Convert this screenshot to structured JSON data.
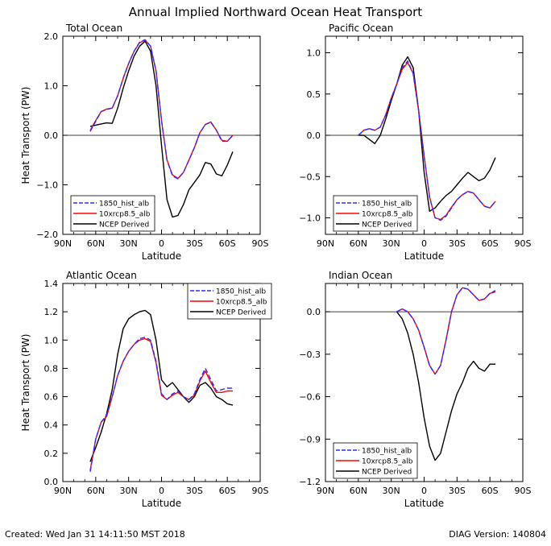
{
  "title": "Annual Implied Northward Ocean Heat Transport",
  "footer": {
    "created": "Created: Wed Jan 31 14:11:50 MST 2018",
    "version": "DIAG Version: 140804"
  },
  "colors": {
    "s1850": "#2b2bff",
    "s10x": "#ff0000",
    "ncep": "#000000",
    "zero": "#000000"
  },
  "chart_data": [
    {
      "type": "line",
      "title": "Total Ocean",
      "xlabel": "Latitude",
      "ylabel": "Heat Transport (PW)",
      "xticks": [
        "90N",
        "60N",
        "30N",
        "0",
        "30S",
        "60S",
        "90S"
      ],
      "xlim": [
        90,
        -90
      ],
      "ylim": [
        -2.0,
        2.0
      ],
      "yticks": [
        -2.0,
        -1.0,
        0.0,
        1.0,
        2.0
      ],
      "ytick_labels": [
        "−2.0",
        "−1.0",
        "0.0",
        "1.0",
        "2.0"
      ],
      "legend_position": "bottom-left",
      "series": [
        {
          "name": "1850_hist_alb",
          "style": "dashed",
          "color": "#2b2bff",
          "x": [
            65,
            60,
            55,
            50,
            45,
            40,
            35,
            30,
            25,
            20,
            15,
            10,
            5,
            0,
            -5,
            -10,
            -15,
            -20,
            -25,
            -30,
            -35,
            -40,
            -45,
            -50,
            -55,
            -60,
            -65
          ],
          "y": [
            0.08,
            0.28,
            0.48,
            0.52,
            0.55,
            0.8,
            1.15,
            1.45,
            1.7,
            1.88,
            1.93,
            1.8,
            1.3,
            0.3,
            -0.5,
            -0.82,
            -0.88,
            -0.75,
            -0.5,
            -0.25,
            0.05,
            0.22,
            0.26,
            0.1,
            -0.12,
            -0.12,
            0.0
          ]
        },
        {
          "name": "10xrcp8.5_alb",
          "style": "solid",
          "color": "#ff0000",
          "x": [
            65,
            60,
            55,
            50,
            45,
            40,
            35,
            30,
            25,
            20,
            15,
            10,
            5,
            0,
            -5,
            -10,
            -15,
            -20,
            -25,
            -30,
            -35,
            -40,
            -45,
            -50,
            -55,
            -60,
            -65
          ],
          "y": [
            0.1,
            0.3,
            0.48,
            0.53,
            0.55,
            0.8,
            1.15,
            1.45,
            1.7,
            1.87,
            1.92,
            1.8,
            1.3,
            0.3,
            -0.5,
            -0.8,
            -0.87,
            -0.75,
            -0.5,
            -0.25,
            0.05,
            0.22,
            0.27,
            0.1,
            -0.1,
            -0.12,
            0.0
          ]
        },
        {
          "name": "NCEP Derived",
          "style": "solid",
          "color": "#000000",
          "x": [
            65,
            55,
            50,
            45,
            40,
            35,
            30,
            25,
            20,
            15,
            10,
            5,
            0,
            -5,
            -10,
            -15,
            -20,
            -25,
            -30,
            -35,
            -40,
            -45,
            -50,
            -55,
            -60,
            -65
          ],
          "y": [
            0.18,
            0.23,
            0.25,
            0.24,
            0.55,
            0.95,
            1.3,
            1.6,
            1.8,
            1.9,
            1.7,
            1.0,
            -0.2,
            -1.3,
            -1.65,
            -1.62,
            -1.4,
            -1.1,
            -0.95,
            -0.8,
            -0.55,
            -0.58,
            -0.78,
            -0.82,
            -0.6,
            -0.33
          ]
        }
      ]
    },
    {
      "type": "line",
      "title": "Pacific Ocean",
      "xlabel": "Latitude",
      "ylabel": "",
      "xticks": [
        "90N",
        "60N",
        "30N",
        "0",
        "30S",
        "60S",
        "90S"
      ],
      "xlim": [
        90,
        -90
      ],
      "ylim": [
        -1.2,
        1.2
      ],
      "yticks": [
        -1.0,
        -0.5,
        0.0,
        0.5,
        1.0
      ],
      "ytick_labels": [
        "−1.0",
        "−0.5",
        "0.0",
        "0.5",
        "1.0"
      ],
      "legend_position": "bottom-left",
      "series": [
        {
          "name": "1850_hist_alb",
          "style": "dashed",
          "color": "#2b2bff",
          "x": [
            60,
            55,
            50,
            45,
            40,
            35,
            30,
            25,
            20,
            15,
            10,
            5,
            0,
            -5,
            -10,
            -15,
            -20,
            -25,
            -30,
            -35,
            -40,
            -45,
            -50,
            -55,
            -60,
            -65
          ],
          "y": [
            0.0,
            0.06,
            0.08,
            0.06,
            0.1,
            0.25,
            0.45,
            0.62,
            0.82,
            0.9,
            0.75,
            0.3,
            -0.25,
            -0.75,
            -1.0,
            -1.03,
            -0.98,
            -0.88,
            -0.78,
            -0.72,
            -0.68,
            -0.7,
            -0.78,
            -0.86,
            -0.88,
            -0.8
          ]
        },
        {
          "name": "10xrcp8.5_alb",
          "style": "solid",
          "color": "#ff0000",
          "x": [
            60,
            55,
            50,
            45,
            40,
            35,
            30,
            25,
            20,
            15,
            10,
            5,
            0,
            -5,
            -10,
            -15,
            -20,
            -25,
            -30,
            -35,
            -40,
            -45,
            -50,
            -55,
            -60,
            -65
          ],
          "y": [
            0.0,
            0.06,
            0.08,
            0.06,
            0.1,
            0.25,
            0.45,
            0.62,
            0.8,
            0.88,
            0.75,
            0.3,
            -0.25,
            -0.75,
            -1.0,
            -1.02,
            -0.97,
            -0.87,
            -0.78,
            -0.72,
            -0.68,
            -0.7,
            -0.78,
            -0.86,
            -0.88,
            -0.8
          ]
        },
        {
          "name": "NCEP Derived",
          "style": "solid",
          "color": "#000000",
          "x": [
            60,
            55,
            50,
            45,
            40,
            35,
            30,
            25,
            20,
            15,
            10,
            5,
            0,
            -5,
            -10,
            -15,
            -20,
            -25,
            -30,
            -35,
            -40,
            -45,
            -50,
            -55,
            -60,
            -65
          ],
          "y": [
            0.0,
            0.0,
            -0.05,
            -0.1,
            0.0,
            0.2,
            0.42,
            0.62,
            0.85,
            0.95,
            0.82,
            0.3,
            -0.45,
            -0.92,
            -0.88,
            -0.8,
            -0.73,
            -0.68,
            -0.6,
            -0.52,
            -0.45,
            -0.5,
            -0.55,
            -0.52,
            -0.42,
            -0.27
          ]
        }
      ]
    },
    {
      "type": "line",
      "title": "Atlantic Ocean",
      "xlabel": "Latitude",
      "ylabel": "Heat Transport (PW)",
      "xticks": [
        "90N",
        "60N",
        "30N",
        "0",
        "30S",
        "60S",
        "90S"
      ],
      "xlim": [
        90,
        -90
      ],
      "ylim": [
        0.0,
        1.4
      ],
      "yticks": [
        0.0,
        0.2,
        0.4,
        0.6,
        0.8,
        1.0,
        1.2,
        1.4
      ],
      "ytick_labels": [
        "0.0",
        "0.2",
        "0.4",
        "0.6",
        "0.8",
        "1.0",
        "1.2",
        "1.4"
      ],
      "legend_position": "top-right",
      "series": [
        {
          "name": "1850_hist_alb",
          "style": "dashed",
          "color": "#2b2bff",
          "x": [
            65,
            60,
            55,
            50,
            45,
            40,
            35,
            30,
            25,
            20,
            15,
            10,
            5,
            0,
            -5,
            -10,
            -15,
            -20,
            -25,
            -30,
            -35,
            -40,
            -45,
            -50,
            -55,
            -60,
            -65
          ],
          "y": [
            0.07,
            0.3,
            0.42,
            0.47,
            0.6,
            0.75,
            0.85,
            0.92,
            0.97,
            1.01,
            1.02,
            1.0,
            0.85,
            0.62,
            0.58,
            0.62,
            0.64,
            0.6,
            0.58,
            0.62,
            0.72,
            0.8,
            0.72,
            0.64,
            0.65,
            0.66,
            0.66
          ]
        },
        {
          "name": "10xrcp8.5_alb",
          "style": "solid",
          "color": "#ff0000",
          "x": [
            65,
            60,
            55,
            50,
            45,
            40,
            35,
            30,
            25,
            20,
            15,
            10,
            5,
            0,
            -5,
            -10,
            -15,
            -20,
            -25,
            -30,
            -35,
            -40,
            -45,
            -50,
            -55,
            -60,
            -65
          ],
          "y": [
            0.08,
            0.3,
            0.42,
            0.46,
            0.6,
            0.75,
            0.85,
            0.92,
            0.97,
            1.0,
            1.01,
            0.99,
            0.84,
            0.61,
            0.58,
            0.61,
            0.63,
            0.6,
            0.58,
            0.61,
            0.71,
            0.78,
            0.7,
            0.63,
            0.63,
            0.64,
            0.64
          ]
        },
        {
          "name": "NCEP Derived",
          "style": "solid",
          "color": "#000000",
          "x": [
            65,
            60,
            55,
            50,
            45,
            40,
            35,
            30,
            25,
            20,
            15,
            10,
            5,
            0,
            -5,
            -10,
            -15,
            -20,
            -25,
            -30,
            -35,
            -40,
            -45,
            -50,
            -55,
            -60,
            -65
          ],
          "y": [
            0.14,
            0.24,
            0.35,
            0.48,
            0.65,
            0.9,
            1.08,
            1.15,
            1.18,
            1.2,
            1.21,
            1.18,
            1.0,
            0.72,
            0.67,
            0.7,
            0.65,
            0.6,
            0.56,
            0.6,
            0.68,
            0.7,
            0.66,
            0.6,
            0.58,
            0.55,
            0.54
          ]
        }
      ]
    },
    {
      "type": "line",
      "title": "Indian Ocean",
      "xlabel": "Latitude",
      "ylabel": "",
      "xticks": [
        "90N",
        "60N",
        "30N",
        "0",
        "30S",
        "60S",
        "90S"
      ],
      "xlim": [
        90,
        -90
      ],
      "ylim": [
        -1.2,
        0.2
      ],
      "yticks": [
        -1.2,
        -0.9,
        -0.6,
        -0.3,
        0.0
      ],
      "ytick_labels": [
        "−1.2",
        "−0.9",
        "−0.6",
        "−0.3",
        "0.0"
      ],
      "legend_position": "bottom-left",
      "series": [
        {
          "name": "1850_hist_alb",
          "style": "dashed",
          "color": "#2b2bff",
          "x": [
            25,
            20,
            15,
            10,
            5,
            0,
            -5,
            -10,
            -15,
            -20,
            -25,
            -30,
            -35,
            -40,
            -45,
            -50,
            -55,
            -60,
            -65
          ],
          "y": [
            0.0,
            0.02,
            0.0,
            -0.05,
            -0.13,
            -0.25,
            -0.38,
            -0.44,
            -0.38,
            -0.2,
            0.0,
            0.12,
            0.17,
            0.16,
            0.12,
            0.08,
            0.09,
            0.13,
            0.15
          ]
        },
        {
          "name": "10xrcp8.5_alb",
          "style": "solid",
          "color": "#ff0000",
          "x": [
            25,
            20,
            15,
            10,
            5,
            0,
            -5,
            -10,
            -15,
            -20,
            -25,
            -30,
            -35,
            -40,
            -45,
            -50,
            -55,
            -60,
            -65
          ],
          "y": [
            0.0,
            0.02,
            0.0,
            -0.05,
            -0.13,
            -0.25,
            -0.38,
            -0.44,
            -0.38,
            -0.2,
            0.0,
            0.12,
            0.17,
            0.16,
            0.12,
            0.08,
            0.09,
            0.13,
            0.14
          ]
        },
        {
          "name": "NCEP Derived",
          "style": "solid",
          "color": "#000000",
          "x": [
            25,
            20,
            15,
            10,
            5,
            0,
            -5,
            -10,
            -15,
            -20,
            -25,
            -30,
            -35,
            -40,
            -45,
            -50,
            -55,
            -60,
            -65
          ],
          "y": [
            0.0,
            -0.05,
            -0.15,
            -0.3,
            -0.5,
            -0.75,
            -0.95,
            -1.05,
            -1.0,
            -0.85,
            -0.7,
            -0.58,
            -0.5,
            -0.4,
            -0.35,
            -0.4,
            -0.42,
            -0.37,
            -0.37
          ]
        }
      ]
    }
  ]
}
